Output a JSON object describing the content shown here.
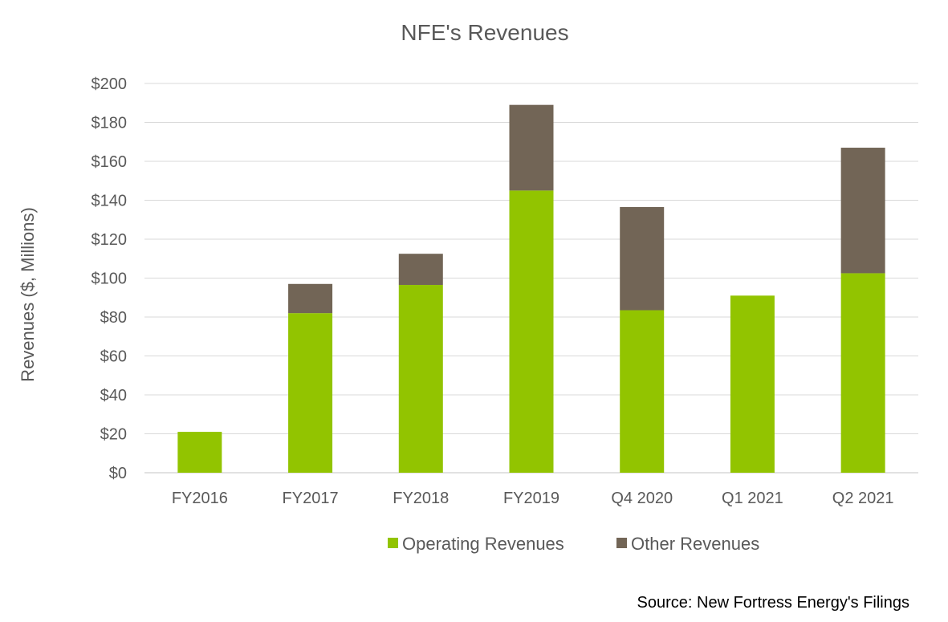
{
  "chart_data": {
    "type": "bar",
    "stacked": true,
    "title": "NFE's Revenues",
    "xlabel": "",
    "ylabel": "Revenues ($, Millions)",
    "ylim": [
      0,
      200
    ],
    "ytick_step": 20,
    "ytick_labels": [
      "$0",
      "$20",
      "$40",
      "$60",
      "$80",
      "$100",
      "$120",
      "$140",
      "$160",
      "$180",
      "$200"
    ],
    "grid": true,
    "legend_position": "bottom",
    "categories": [
      "FY2016",
      "FY2017",
      "FY2018",
      "FY2019",
      "Q4 2020",
      "Q1 2021",
      "Q2 2021"
    ],
    "series": [
      {
        "name": "Operating Revenues",
        "color": "#92c400",
        "values": [
          21,
          82,
          96.5,
          145,
          83.5,
          91,
          102.5
        ]
      },
      {
        "name": "Other Revenues",
        "color": "#726556",
        "values": [
          0,
          15,
          16,
          44,
          53,
          0,
          64.5
        ]
      }
    ],
    "source": "Source: New Fortress Energy's Filings"
  },
  "colors": {
    "grid": "#d9d9d9",
    "text": "#595959",
    "axis": "#d9d9d9"
  }
}
